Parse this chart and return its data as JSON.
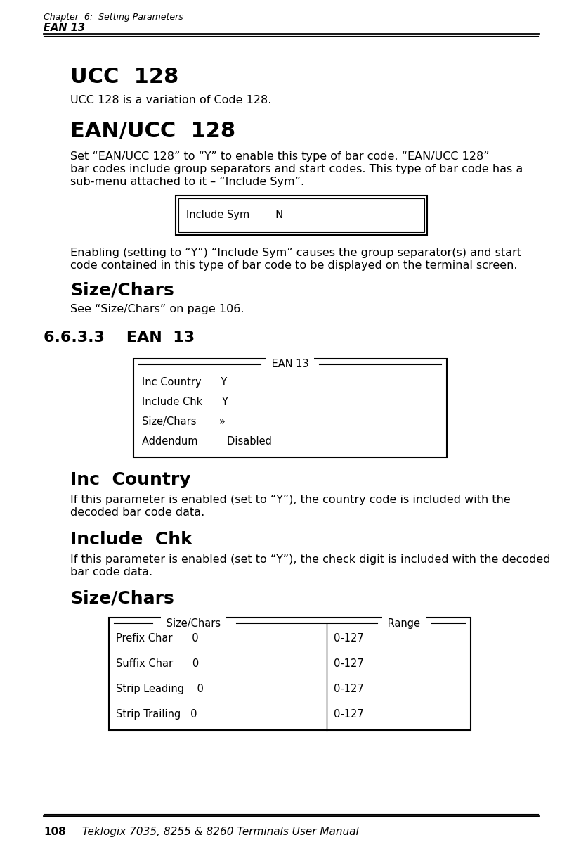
{
  "page_width": 8.28,
  "page_height": 11.97,
  "bg_color": "#ffffff",
  "header_line1": "Chapter  6:  Setting Parameters",
  "header_line2": "EAN 13",
  "footer_page": "108",
  "footer_text": "Teklogix 7035, 8255 & 8260 Terminals User Manual",
  "ucc128_heading": "UCC  128",
  "ucc128_body": "UCC 128 is a variation of Code 128.",
  "eanucc128_heading": "EAN/UCC  128",
  "eanucc128_body1": "Set “EAN/UCC 128” to “Y” to enable this type of bar code. “EAN/UCC 128”",
  "eanucc128_body2": "bar codes include group separators and start codes. This type of bar code has a",
  "eanucc128_body3": "sub-menu attached to it – “Include Sym”.",
  "include_sym_line": "Include Sym        N",
  "enabling_body1": "Enabling (setting to “Y”) “Include Sym” causes the group separator(s) and start",
  "enabling_body2": "code contained in this type of bar code to be displayed on the terminal screen.",
  "sizechars1_heading": "Size/Chars",
  "sizechars1_body": "See “Size/Chars” on page 106.",
  "section663_heading": "6.6.3.3    EAN  13",
  "ean13_title": "EAN 13",
  "ean13_lines": [
    "Inc Country      Y",
    "Include Chk      Y",
    "Size/Chars       »",
    "Addendum         Disabled"
  ],
  "inc_country_heading": "Inc  Country",
  "inc_country_body1": "If this parameter is enabled (set to “Y”), the country code is included with the",
  "inc_country_body2": "decoded bar code data.",
  "include_chk_heading": "Include  Chk",
  "include_chk_body1": "If this parameter is enabled (set to “Y”), the check digit is included with the decoded",
  "include_chk_body2": "bar code data.",
  "sizechars2_heading": "Size/Chars",
  "sc_title_left": "Size/Chars",
  "sc_title_right": "Range",
  "sc_lines_left": [
    "Prefix Char      0",
    "Suffix Char      0",
    "Strip Leading    0",
    "Strip Trailing   0"
  ],
  "sc_lines_right": [
    "0-127",
    "0-127",
    "0-127",
    "0-127"
  ]
}
